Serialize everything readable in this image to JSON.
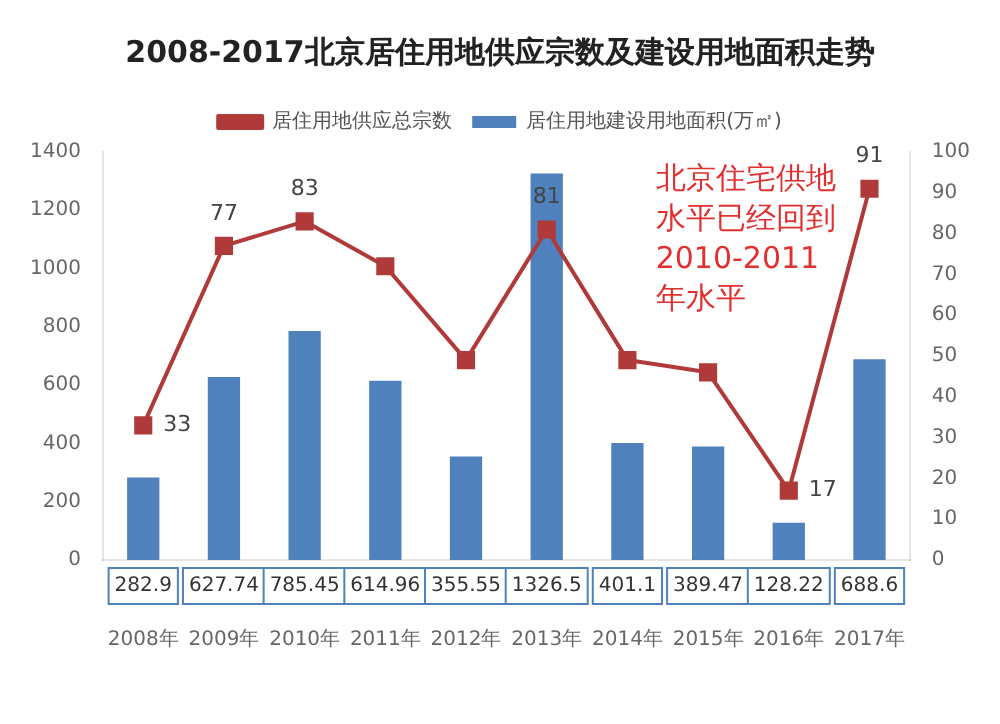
{
  "chart_data": {
    "type": "bar",
    "title": "2008-2017北京居住用地供应宗数及建设用地面积走势",
    "categories": [
      "2008年",
      "2009年",
      "2010年",
      "2011年",
      "2012年",
      "2013年",
      "2014年",
      "2015年",
      "2016年",
      "2017年"
    ],
    "series": [
      {
        "name": "居住用地建设用地面积(万㎡)",
        "color": "#4f81bd",
        "values": [
          282.9,
          627.74,
          785.45,
          614.96,
          355.55,
          1326.5,
          401.1,
          389.47,
          128.22,
          688.6
        ],
        "value_labels": [
          "282.9",
          "627.74",
          "785.45",
          "614.96",
          "355.55",
          "1326.5",
          "401.1",
          "389.47",
          "128.22",
          "688.6"
        ]
      },
      {
        "name": "居住用地供应总宗数",
        "type": "line",
        "axis": "y2",
        "color": "#b03a3a",
        "marker": "square",
        "values": [
          33,
          77,
          83,
          72,
          49,
          81,
          49,
          46,
          17,
          91
        ],
        "value_labels": [
          "33",
          "77",
          "83",
          null,
          null,
          "81",
          null,
          null,
          "17",
          "91"
        ]
      }
    ],
    "ylim": [
      0,
      1400
    ],
    "yticks": [
      0,
      200,
      400,
      600,
      800,
      1000,
      1200,
      1400
    ],
    "y2lim": [
      0,
      100
    ],
    "y2ticks": [
      0,
      10,
      20,
      30,
      40,
      50,
      60,
      70,
      80,
      90,
      100
    ],
    "legend": "top",
    "grid": false,
    "annotations": [
      "北京住宅供地水平已经回到2010-2011年水平"
    ]
  }
}
